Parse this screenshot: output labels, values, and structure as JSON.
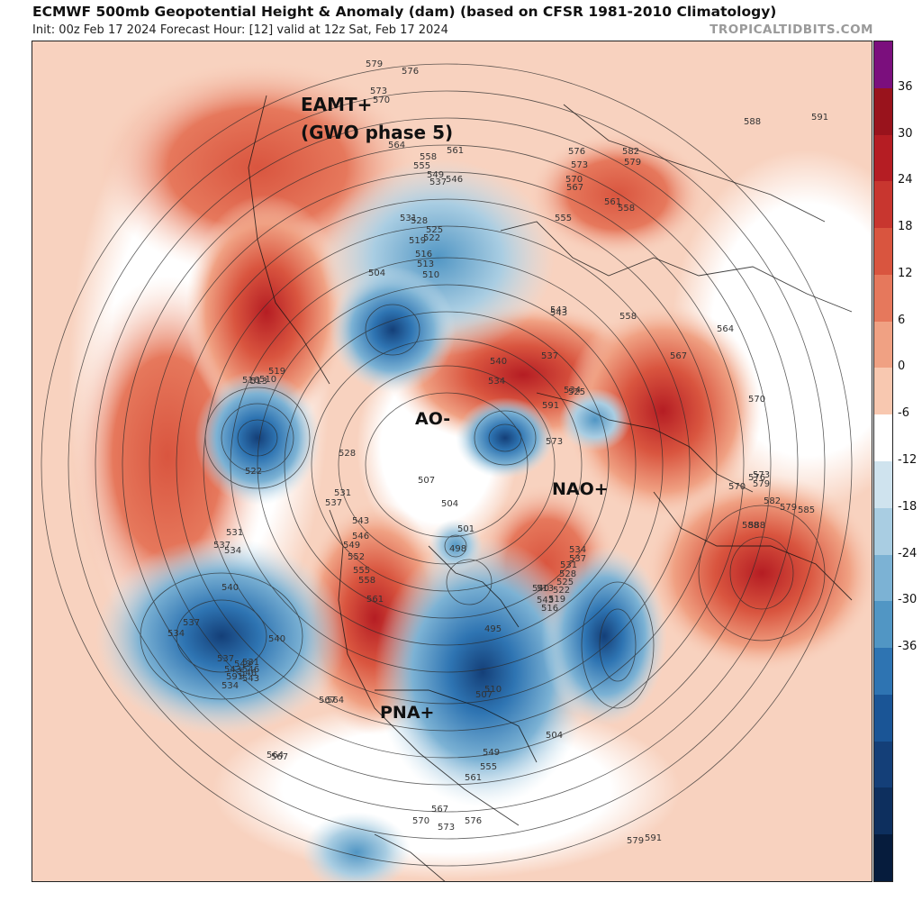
{
  "header": {
    "title": "ECMWF 500mb Geopotential Height & Anomaly (dam) (based on CFSR 1981-2010 Climatology)",
    "subtitle": "Init: 00z Feb 17 2024   Forecast Hour: [12]   valid at 12z Sat, Feb 17 2024",
    "brand": "TROPICALTIDBITS.COM"
  },
  "annotations": {
    "eamt": "EAMT+",
    "gwo": "(GWO phase 5)",
    "ao": "AO-",
    "nao": "NAO+",
    "pna": "PNA+"
  },
  "contour_labels": [
    "579",
    "576",
    "573",
    "570",
    "564",
    "561",
    "558",
    "555",
    "549",
    "546",
    "537",
    "531",
    "528",
    "525",
    "522",
    "519",
    "516",
    "513",
    "510",
    "504",
    "543",
    "540",
    "534",
    "576",
    "573",
    "570",
    "567",
    "582",
    "579",
    "588",
    "591",
    "561",
    "558",
    "555",
    "543",
    "537",
    "534",
    "525",
    "558",
    "567",
    "564",
    "570",
    "507",
    "504",
    "501",
    "498",
    "495",
    "513",
    "510",
    "516",
    "519",
    "522",
    "528",
    "531",
    "537",
    "543",
    "546",
    "549",
    "552",
    "555",
    "558",
    "561",
    "564",
    "567",
    "531",
    "534",
    "537",
    "540",
    "543",
    "546",
    "531",
    "537",
    "534",
    "540",
    "543",
    "546",
    "567",
    "564",
    "543",
    "540",
    "537",
    "534",
    "531",
    "528",
    "525",
    "522",
    "519",
    "516",
    "513",
    "510",
    "507",
    "504",
    "573",
    "579",
    "582",
    "585",
    "588",
    "591",
    "573",
    "570",
    "576",
    "579",
    "588",
    "591",
    "534",
    "537",
    "543",
    "549",
    "555",
    "561",
    "567",
    "570",
    "573",
    "576",
    "579",
    "591"
  ],
  "colorbar": {
    "ticks": [
      "36",
      "30",
      "24",
      "18",
      "12",
      "6",
      "0",
      "-6",
      "-12",
      "-18",
      "-24",
      "-30",
      "-36"
    ],
    "colors": [
      "#7b0f7d",
      "#99131c",
      "#b51d23",
      "#c8362f",
      "#d9553f",
      "#e6785c",
      "#f0a183",
      "#f8c8b0",
      "#ffffff",
      "#cfe3ee",
      "#a9cde2",
      "#7cb2d4",
      "#5196c4",
      "#2e74b2",
      "#1a5596",
      "#143f78",
      "#0d2f5e",
      "#061c3d"
    ]
  }
}
